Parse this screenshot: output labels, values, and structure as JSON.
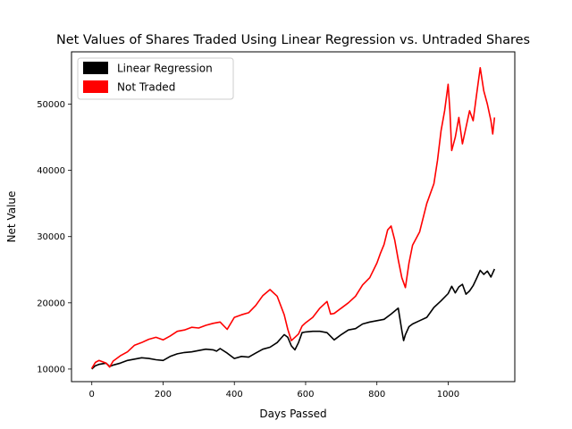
{
  "chart_data": {
    "type": "line",
    "title": "Net Values of Shares Traded Using Linear Regression vs. Untraded Shares",
    "xlabel": "Days Passed",
    "ylabel": "Net Value",
    "xlim": [
      -57,
      1187
    ],
    "ylim": [
      8100,
      57900
    ],
    "x_ticks": [
      0,
      200,
      400,
      600,
      800,
      1000
    ],
    "y_ticks": [
      10000,
      20000,
      30000,
      40000,
      50000
    ],
    "grid": false,
    "legend": "top-left",
    "series": [
      {
        "name": "Linear Regression",
        "color": "#000000",
        "points": [
          [
            0,
            10000
          ],
          [
            10,
            10500
          ],
          [
            20,
            10700
          ],
          [
            40,
            10900
          ],
          [
            50,
            10400
          ],
          [
            60,
            10600
          ],
          [
            80,
            10900
          ],
          [
            100,
            11300
          ],
          [
            120,
            11500
          ],
          [
            140,
            11700
          ],
          [
            160,
            11600
          ],
          [
            180,
            11400
          ],
          [
            200,
            11300
          ],
          [
            220,
            11900
          ],
          [
            240,
            12300
          ],
          [
            260,
            12500
          ],
          [
            280,
            12600
          ],
          [
            300,
            12800
          ],
          [
            320,
            13000
          ],
          [
            340,
            12900
          ],
          [
            350,
            12700
          ],
          [
            360,
            13100
          ],
          [
            380,
            12400
          ],
          [
            400,
            11600
          ],
          [
            420,
            11900
          ],
          [
            440,
            11800
          ],
          [
            460,
            12400
          ],
          [
            480,
            13000
          ],
          [
            500,
            13300
          ],
          [
            520,
            14000
          ],
          [
            540,
            15200
          ],
          [
            550,
            14800
          ],
          [
            560,
            13500
          ],
          [
            570,
            12900
          ],
          [
            580,
            14000
          ],
          [
            590,
            15500
          ],
          [
            600,
            15600
          ],
          [
            620,
            15700
          ],
          [
            640,
            15700
          ],
          [
            660,
            15500
          ],
          [
            680,
            14400
          ],
          [
            700,
            15200
          ],
          [
            720,
            15900
          ],
          [
            740,
            16100
          ],
          [
            760,
            16800
          ],
          [
            780,
            17100
          ],
          [
            800,
            17300
          ],
          [
            820,
            17500
          ],
          [
            840,
            18300
          ],
          [
            860,
            19200
          ],
          [
            870,
            15800
          ],
          [
            875,
            14300
          ],
          [
            880,
            15200
          ],
          [
            890,
            16400
          ],
          [
            900,
            16800
          ],
          [
            920,
            17300
          ],
          [
            940,
            17800
          ],
          [
            960,
            19300
          ],
          [
            980,
            20300
          ],
          [
            1000,
            21400
          ],
          [
            1010,
            22500
          ],
          [
            1020,
            21500
          ],
          [
            1030,
            22400
          ],
          [
            1040,
            22800
          ],
          [
            1050,
            21300
          ],
          [
            1060,
            21800
          ],
          [
            1070,
            22600
          ],
          [
            1080,
            23700
          ],
          [
            1090,
            24900
          ],
          [
            1100,
            24300
          ],
          [
            1110,
            24800
          ],
          [
            1120,
            23900
          ],
          [
            1130,
            25100
          ]
        ]
      },
      {
        "name": "Not Traded",
        "color": "#ff0000",
        "points": [
          [
            0,
            10100
          ],
          [
            10,
            11000
          ],
          [
            20,
            11300
          ],
          [
            40,
            10900
          ],
          [
            50,
            10300
          ],
          [
            60,
            11200
          ],
          [
            80,
            12000
          ],
          [
            100,
            12600
          ],
          [
            120,
            13600
          ],
          [
            140,
            14000
          ],
          [
            160,
            14500
          ],
          [
            180,
            14800
          ],
          [
            200,
            14400
          ],
          [
            220,
            15000
          ],
          [
            240,
            15700
          ],
          [
            260,
            15900
          ],
          [
            280,
            16300
          ],
          [
            300,
            16200
          ],
          [
            320,
            16600
          ],
          [
            340,
            16900
          ],
          [
            360,
            17100
          ],
          [
            380,
            16000
          ],
          [
            400,
            17800
          ],
          [
            420,
            18200
          ],
          [
            440,
            18500
          ],
          [
            460,
            19600
          ],
          [
            480,
            21100
          ],
          [
            500,
            22000
          ],
          [
            520,
            21000
          ],
          [
            540,
            18200
          ],
          [
            550,
            16000
          ],
          [
            560,
            14300
          ],
          [
            570,
            14800
          ],
          [
            580,
            15300
          ],
          [
            590,
            16500
          ],
          [
            600,
            17000
          ],
          [
            620,
            17800
          ],
          [
            640,
            19200
          ],
          [
            660,
            20200
          ],
          [
            670,
            18300
          ],
          [
            680,
            18400
          ],
          [
            700,
            19200
          ],
          [
            720,
            20000
          ],
          [
            740,
            21000
          ],
          [
            760,
            22700
          ],
          [
            780,
            23800
          ],
          [
            800,
            26000
          ],
          [
            810,
            27500
          ],
          [
            820,
            28800
          ],
          [
            830,
            31000
          ],
          [
            840,
            31600
          ],
          [
            850,
            29500
          ],
          [
            860,
            26500
          ],
          [
            870,
            23800
          ],
          [
            880,
            22300
          ],
          [
            890,
            26000
          ],
          [
            900,
            28700
          ],
          [
            920,
            30700
          ],
          [
            940,
            35000
          ],
          [
            960,
            38000
          ],
          [
            970,
            41500
          ],
          [
            980,
            46000
          ],
          [
            990,
            49000
          ],
          [
            1000,
            53000
          ],
          [
            1005,
            49000
          ],
          [
            1010,
            43000
          ],
          [
            1020,
            45000
          ],
          [
            1030,
            48000
          ],
          [
            1040,
            44000
          ],
          [
            1050,
            46500
          ],
          [
            1060,
            49000
          ],
          [
            1070,
            47500
          ],
          [
            1080,
            51500
          ],
          [
            1090,
            55500
          ],
          [
            1100,
            52000
          ],
          [
            1110,
            50000
          ],
          [
            1120,
            47500
          ],
          [
            1125,
            45500
          ],
          [
            1130,
            48000
          ]
        ]
      }
    ]
  }
}
